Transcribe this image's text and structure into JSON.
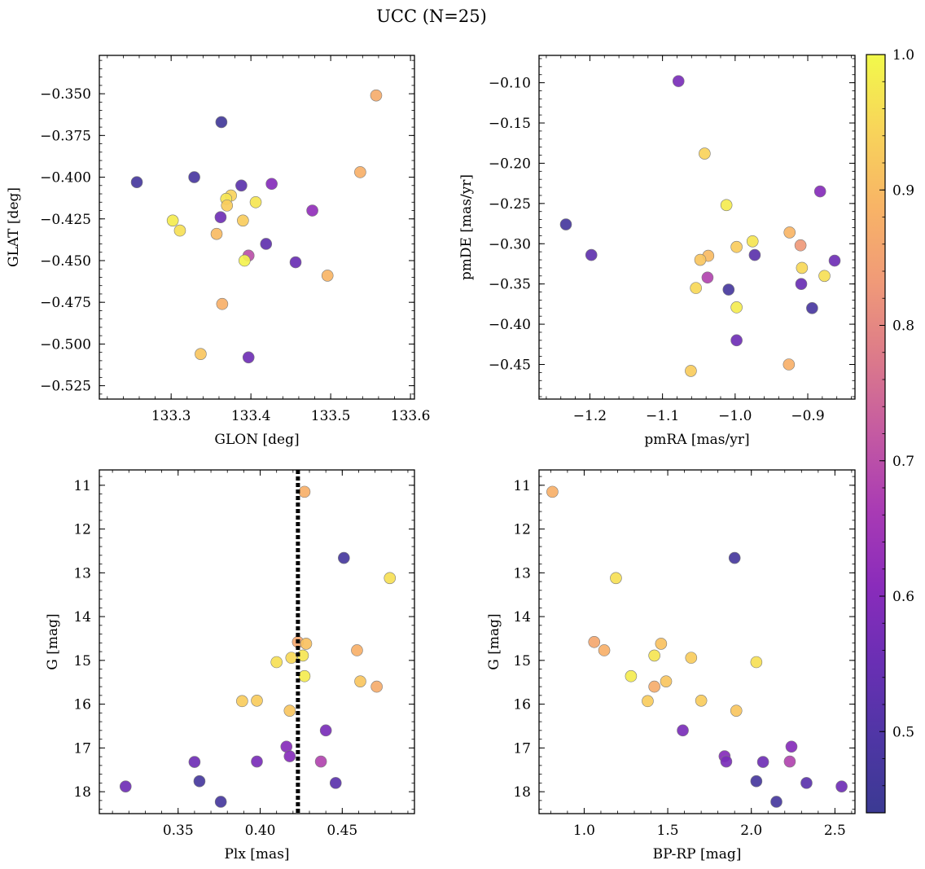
{
  "figure": {
    "title": "UCC (N=25)"
  },
  "colorbar": {
    "colormap": "plasma",
    "range": [
      0.44,
      1.0
    ],
    "ticks": [
      0.5,
      0.6,
      0.7,
      0.8,
      0.9,
      1.0
    ],
    "tick_labels": [
      "0.5",
      "0.6",
      "0.7",
      "0.8",
      "0.9",
      "1.0"
    ]
  },
  "chart_data": [
    {
      "type": "scatter",
      "title": "",
      "xlabel": "GLON [deg]",
      "ylabel": "GLAT [deg]",
      "xlim": [
        133.21,
        133.605
      ],
      "ylim": [
        -0.533,
        -0.327
      ],
      "y_inverted": false,
      "xticks": [
        133.3,
        133.4,
        133.5,
        133.6
      ],
      "xtick_labels": [
        "133.3",
        "133.4",
        "133.5",
        "133.6"
      ],
      "yticks": [
        -0.35,
        -0.375,
        -0.4,
        -0.425,
        -0.45,
        -0.475,
        -0.5,
        -0.525
      ],
      "ytick_labels": [
        "−0.350",
        "−0.375",
        "−0.400",
        "−0.425",
        "−0.450",
        "−0.475",
        "−0.500",
        "−0.525"
      ],
      "points": [
        {
          "x": 133.557,
          "y": -0.351,
          "c": 0.87
        },
        {
          "x": 133.363,
          "y": -0.367,
          "c": 0.46
        },
        {
          "x": 133.537,
          "y": -0.397,
          "c": 0.88
        },
        {
          "x": 133.257,
          "y": -0.403,
          "c": 0.47
        },
        {
          "x": 133.329,
          "y": -0.4,
          "c": 0.48
        },
        {
          "x": 133.388,
          "y": -0.405,
          "c": 0.52
        },
        {
          "x": 133.426,
          "y": -0.404,
          "c": 0.6
        },
        {
          "x": 133.375,
          "y": -0.411,
          "c": 0.94
        },
        {
          "x": 133.369,
          "y": -0.413,
          "c": 0.97
        },
        {
          "x": 133.406,
          "y": -0.415,
          "c": 0.97
        },
        {
          "x": 133.37,
          "y": -0.417,
          "c": 0.93
        },
        {
          "x": 133.477,
          "y": -0.42,
          "c": 0.62
        },
        {
          "x": 133.362,
          "y": -0.424,
          "c": 0.56
        },
        {
          "x": 133.302,
          "y": -0.426,
          "c": 0.98
        },
        {
          "x": 133.39,
          "y": -0.426,
          "c": 0.93
        },
        {
          "x": 133.311,
          "y": -0.432,
          "c": 0.96
        },
        {
          "x": 133.357,
          "y": -0.434,
          "c": 0.9
        },
        {
          "x": 133.419,
          "y": -0.44,
          "c": 0.53
        },
        {
          "x": 133.397,
          "y": -0.447,
          "c": 0.7
        },
        {
          "x": 133.392,
          "y": -0.45,
          "c": 0.99
        },
        {
          "x": 133.456,
          "y": -0.451,
          "c": 0.55
        },
        {
          "x": 133.496,
          "y": -0.459,
          "c": 0.89
        },
        {
          "x": 133.364,
          "y": -0.476,
          "c": 0.88
        },
        {
          "x": 133.337,
          "y": -0.506,
          "c": 0.92
        },
        {
          "x": 133.397,
          "y": -0.508,
          "c": 0.56
        }
      ]
    },
    {
      "type": "scatter",
      "title": "",
      "xlabel": "pmRA [mas/yr]",
      "ylabel": "pmDE [mas/yr]",
      "xlim": [
        -1.27,
        -0.835
      ],
      "ylim": [
        -0.493,
        -0.066
      ],
      "y_inverted": false,
      "xticks": [
        -1.2,
        -1.1,
        -1.0,
        -0.9
      ],
      "xtick_labels": [
        "−1.2",
        "−1.1",
        "−1.0",
        "−0.9"
      ],
      "yticks": [
        -0.1,
        -0.15,
        -0.2,
        -0.25,
        -0.3,
        -0.35,
        -0.4,
        -0.45
      ],
      "ytick_labels": [
        "−0.10",
        "−0.15",
        "−0.20",
        "−0.25",
        "−0.30",
        "−0.35",
        "−0.40",
        "−0.45"
      ],
      "points": [
        {
          "x": -1.078,
          "y": -0.098,
          "c": 0.58
        },
        {
          "x": -1.042,
          "y": -0.188,
          "c": 0.94
        },
        {
          "x": -0.883,
          "y": -0.235,
          "c": 0.6
        },
        {
          "x": -1.012,
          "y": -0.252,
          "c": 0.98
        },
        {
          "x": -1.233,
          "y": -0.276,
          "c": 0.47
        },
        {
          "x": -0.925,
          "y": -0.286,
          "c": 0.89
        },
        {
          "x": -0.976,
          "y": -0.297,
          "c": 0.97
        },
        {
          "x": -0.91,
          "y": -0.302,
          "c": 0.83
        },
        {
          "x": -0.998,
          "y": -0.304,
          "c": 0.93
        },
        {
          "x": -1.198,
          "y": -0.314,
          "c": 0.53
        },
        {
          "x": -0.973,
          "y": -0.314,
          "c": 0.52
        },
        {
          "x": -1.037,
          "y": -0.315,
          "c": 0.9
        },
        {
          "x": -1.048,
          "y": -0.32,
          "c": 0.92
        },
        {
          "x": -0.863,
          "y": -0.321,
          "c": 0.56
        },
        {
          "x": -0.908,
          "y": -0.33,
          "c": 0.95
        },
        {
          "x": -0.877,
          "y": -0.34,
          "c": 0.96
        },
        {
          "x": -1.038,
          "y": -0.342,
          "c": 0.68
        },
        {
          "x": -0.909,
          "y": -0.35,
          "c": 0.55
        },
        {
          "x": -1.054,
          "y": -0.355,
          "c": 0.95
        },
        {
          "x": -1.009,
          "y": -0.357,
          "c": 0.47
        },
        {
          "x": -0.894,
          "y": -0.38,
          "c": 0.48
        },
        {
          "x": -0.998,
          "y": -0.379,
          "c": 0.98
        },
        {
          "x": -0.998,
          "y": -0.42,
          "c": 0.56
        },
        {
          "x": -0.926,
          "y": -0.45,
          "c": 0.88
        },
        {
          "x": -1.061,
          "y": -0.458,
          "c": 0.93
        }
      ]
    },
    {
      "type": "scatter",
      "title": "",
      "xlabel": "Plx [mas]",
      "ylabel": "G [mag]",
      "xlim": [
        0.302,
        0.494
      ],
      "ylim": [
        18.5,
        10.65
      ],
      "y_inverted": true,
      "vline": {
        "x": 0.423,
        "style": "dotted"
      },
      "xticks": [
        0.35,
        0.4,
        0.45
      ],
      "xtick_labels": [
        "0.35",
        "0.40",
        "0.45"
      ],
      "yticks": [
        11,
        12,
        13,
        14,
        15,
        16,
        17,
        18
      ],
      "ytick_labels": [
        "11",
        "12",
        "13",
        "14",
        "15",
        "16",
        "17",
        "18"
      ],
      "points": [
        {
          "x": 0.427,
          "y": 11.15,
          "c": 0.88
        },
        {
          "x": 0.451,
          "y": 12.66,
          "c": 0.47
        },
        {
          "x": 0.479,
          "y": 13.12,
          "c": 0.96
        },
        {
          "x": 0.423,
          "y": 14.58,
          "c": 0.86
        },
        {
          "x": 0.428,
          "y": 14.62,
          "c": 0.91
        },
        {
          "x": 0.459,
          "y": 14.77,
          "c": 0.88
        },
        {
          "x": 0.426,
          "y": 14.89,
          "c": 0.97
        },
        {
          "x": 0.419,
          "y": 14.94,
          "c": 0.95
        },
        {
          "x": 0.41,
          "y": 15.04,
          "c": 0.96
        },
        {
          "x": 0.427,
          "y": 15.36,
          "c": 0.98
        },
        {
          "x": 0.461,
          "y": 15.48,
          "c": 0.92
        },
        {
          "x": 0.471,
          "y": 15.6,
          "c": 0.87
        },
        {
          "x": 0.389,
          "y": 15.93,
          "c": 0.93
        },
        {
          "x": 0.398,
          "y": 15.92,
          "c": 0.93
        },
        {
          "x": 0.418,
          "y": 16.15,
          "c": 0.92
        },
        {
          "x": 0.44,
          "y": 16.6,
          "c": 0.58
        },
        {
          "x": 0.416,
          "y": 16.97,
          "c": 0.6
        },
        {
          "x": 0.418,
          "y": 17.19,
          "c": 0.6
        },
        {
          "x": 0.36,
          "y": 17.32,
          "c": 0.56
        },
        {
          "x": 0.398,
          "y": 17.31,
          "c": 0.58
        },
        {
          "x": 0.437,
          "y": 17.31,
          "c": 0.68
        },
        {
          "x": 0.363,
          "y": 17.76,
          "c": 0.47
        },
        {
          "x": 0.446,
          "y": 17.8,
          "c": 0.52
        },
        {
          "x": 0.318,
          "y": 17.88,
          "c": 0.56
        },
        {
          "x": 0.376,
          "y": 18.23,
          "c": 0.47
        }
      ]
    },
    {
      "type": "scatter",
      "title": "",
      "xlabel": "BP-RP [mag]",
      "ylabel": "G [mag]",
      "xlim": [
        0.73,
        2.62
      ],
      "ylim": [
        18.5,
        10.65
      ],
      "y_inverted": true,
      "xticks": [
        1.0,
        1.5,
        2.0,
        2.5
      ],
      "xtick_labels": [
        "1.0",
        "1.5",
        "2.0",
        "2.5"
      ],
      "yticks": [
        11,
        12,
        13,
        14,
        15,
        16,
        17,
        18
      ],
      "ytick_labels": [
        "11",
        "12",
        "13",
        "14",
        "15",
        "16",
        "17",
        "18"
      ],
      "points": [
        {
          "x": 0.81,
          "y": 11.15,
          "c": 0.88
        },
        {
          "x": 1.9,
          "y": 12.66,
          "c": 0.47
        },
        {
          "x": 1.19,
          "y": 13.12,
          "c": 0.96
        },
        {
          "x": 1.06,
          "y": 14.58,
          "c": 0.86
        },
        {
          "x": 1.46,
          "y": 14.62,
          "c": 0.91
        },
        {
          "x": 1.12,
          "y": 14.77,
          "c": 0.88
        },
        {
          "x": 1.42,
          "y": 14.89,
          "c": 0.97
        },
        {
          "x": 1.64,
          "y": 14.94,
          "c": 0.93
        },
        {
          "x": 2.03,
          "y": 15.04,
          "c": 0.96
        },
        {
          "x": 1.28,
          "y": 15.36,
          "c": 0.98
        },
        {
          "x": 1.49,
          "y": 15.48,
          "c": 0.92
        },
        {
          "x": 1.42,
          "y": 15.6,
          "c": 0.87
        },
        {
          "x": 1.38,
          "y": 15.93,
          "c": 0.93
        },
        {
          "x": 1.7,
          "y": 15.92,
          "c": 0.93
        },
        {
          "x": 1.91,
          "y": 16.15,
          "c": 0.92
        },
        {
          "x": 1.59,
          "y": 16.6,
          "c": 0.58
        },
        {
          "x": 2.24,
          "y": 16.97,
          "c": 0.6
        },
        {
          "x": 1.84,
          "y": 17.19,
          "c": 0.6
        },
        {
          "x": 2.07,
          "y": 17.32,
          "c": 0.56
        },
        {
          "x": 1.85,
          "y": 17.31,
          "c": 0.58
        },
        {
          "x": 2.23,
          "y": 17.31,
          "c": 0.68
        },
        {
          "x": 2.03,
          "y": 17.76,
          "c": 0.47
        },
        {
          "x": 2.33,
          "y": 17.8,
          "c": 0.52
        },
        {
          "x": 2.54,
          "y": 17.88,
          "c": 0.56
        },
        {
          "x": 2.15,
          "y": 18.23,
          "c": 0.47
        }
      ]
    }
  ]
}
